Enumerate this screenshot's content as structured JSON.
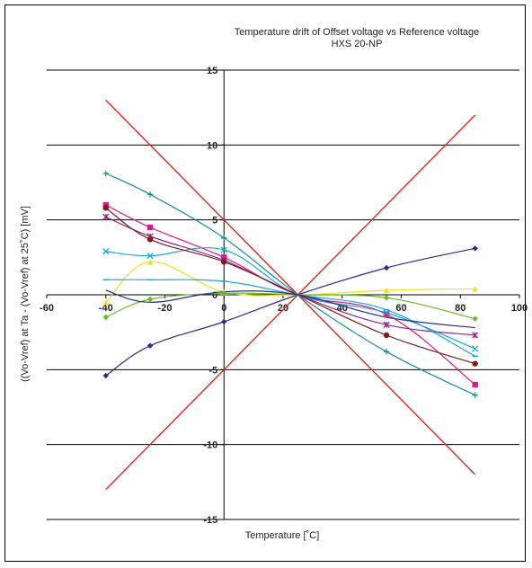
{
  "chart_data": {
    "type": "line",
    "title": "Temperature drift of Offset voltage vs Reference voltage",
    "subtitle": "HXS 20-NP",
    "xlabel": "Temperature [˚C]",
    "ylabel": "((Vo-Vref) at Ta - (Vo-Vref) at 25˚C) [mV]",
    "xlim": [
      -60,
      100
    ],
    "ylim": [
      -15,
      15
    ],
    "x_ticks": [
      "-60",
      "-40",
      "-20",
      "0",
      "20",
      "40",
      "60",
      "80",
      "100"
    ],
    "y_ticks": [
      "-15",
      "-10",
      "-5",
      "0",
      "5",
      "10",
      "15"
    ],
    "grid": "horizontal",
    "legend": "none",
    "limit_lines": [
      {
        "color": "#e0281e",
        "points": [
          [
            -40,
            13
          ],
          [
            25,
            0
          ],
          [
            85,
            12
          ]
        ]
      },
      {
        "color": "#e0281e",
        "points": [
          [
            -40,
            -13
          ],
          [
            25,
            0
          ],
          [
            85,
            -12
          ]
        ]
      }
    ],
    "series": [
      {
        "color": "#2a2e8c",
        "marker": "diamond",
        "x": [
          -40,
          -25,
          0,
          25,
          55,
          85
        ],
        "values": [
          -5.4,
          -3.4,
          -1.8,
          0,
          1.8,
          3.1
        ]
      },
      {
        "color": "#e0188c",
        "marker": "square",
        "x": [
          -40,
          -25,
          0,
          25,
          55,
          85
        ],
        "values": [
          6.0,
          4.5,
          2.5,
          0,
          -1.3,
          -6.0
        ]
      },
      {
        "color": "#f0e020",
        "marker": "triangle",
        "x": [
          -40,
          -25,
          0,
          25,
          55,
          85
        ],
        "values": [
          -0.5,
          2.2,
          0.2,
          0,
          0.3,
          0.4
        ]
      },
      {
        "color": "#1aa8d8",
        "marker": "x",
        "x": [
          -40,
          -25,
          0,
          25,
          55,
          85
        ],
        "values": [
          2.9,
          2.6,
          3.0,
          0,
          -1.2,
          -3.6
        ]
      },
      {
        "color": "#8b2a8a",
        "marker": "star",
        "x": [
          -40,
          -25,
          0,
          25,
          55,
          85
        ],
        "values": [
          5.2,
          3.9,
          2.3,
          0,
          -2.0,
          -2.7
        ]
      },
      {
        "color": "#7a1e1e",
        "marker": "circle",
        "x": [
          -40,
          -25,
          0,
          25,
          55,
          85
        ],
        "values": [
          5.8,
          3.7,
          2.2,
          0,
          -2.7,
          -4.6
        ]
      },
      {
        "color": "#18909a",
        "marker": "plus",
        "x": [
          -40,
          -25,
          0,
          25,
          55,
          85
        ],
        "values": [
          8.1,
          6.7,
          3.8,
          0,
          -3.8,
          -6.7
        ]
      },
      {
        "color": "#1aa8d8",
        "marker": "dash",
        "x": [
          -40,
          -25,
          0,
          25,
          55,
          85
        ],
        "values": [
          1.0,
          1.0,
          0.9,
          0,
          -1.0,
          -4.1
        ]
      },
      {
        "color": "#6ab82a",
        "marker": "diamond",
        "x": [
          -40,
          -25,
          0,
          25,
          55,
          85
        ],
        "values": [
          -1.5,
          -0.3,
          0.1,
          0,
          -0.2,
          -1.6
        ]
      },
      {
        "color": "#2a2e8c",
        "marker": "none",
        "x": [
          -40,
          -25,
          0,
          25,
          55,
          85
        ],
        "values": [
          0.3,
          -0.5,
          0.2,
          0,
          -1.5,
          -2.2
        ]
      }
    ]
  }
}
